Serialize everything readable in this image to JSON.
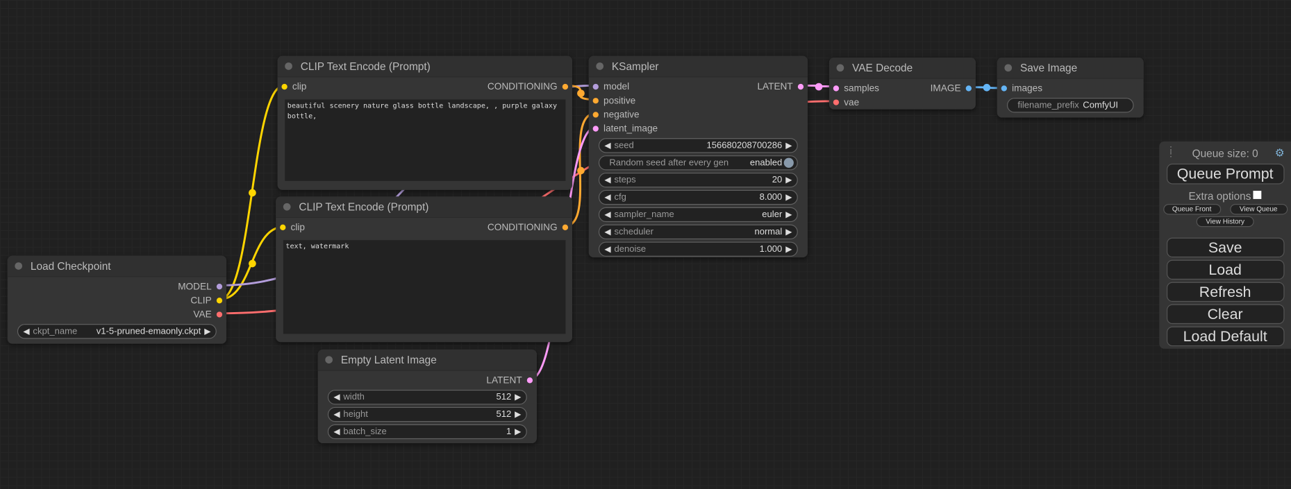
{
  "colors": {
    "CLIP": "#ffd500",
    "MODEL": "#b39ddb",
    "VAE": "#ff6e6e",
    "CONDITIONING": "#ffa931",
    "LATENT": "#ff9cf9",
    "IMAGE": "#64b5f6"
  },
  "nodes": [
    {
      "id": "clip1",
      "title": "CLIP Text Encode (Prompt)",
      "inputs": [
        {
          "label": "clip",
          "type": "CLIP"
        }
      ],
      "outputs": [
        {
          "label": "CONDITIONING",
          "type": "CONDITIONING"
        }
      ],
      "widgets": [],
      "text": "beautiful scenery nature glass bottle landscape, , purple galaxy bottle,"
    },
    {
      "id": "clip2",
      "title": "CLIP Text Encode (Prompt)",
      "inputs": [
        {
          "label": "clip",
          "type": "CLIP"
        }
      ],
      "outputs": [
        {
          "label": "CONDITIONING",
          "type": "CONDITIONING"
        }
      ],
      "widgets": [],
      "text": "text, watermark"
    },
    {
      "id": "ckpt",
      "title": "Load Checkpoint",
      "inputs": [],
      "outputs": [
        {
          "label": "MODEL",
          "type": "MODEL"
        },
        {
          "label": "CLIP",
          "type": "CLIP"
        },
        {
          "label": "VAE",
          "type": "VAE"
        }
      ],
      "widgets": [
        {
          "label": "ckpt_name",
          "value": "v1-5-pruned-emaonly.ckpt",
          "kind": "combo"
        }
      ]
    },
    {
      "id": "latent",
      "title": "Empty Latent Image",
      "inputs": [],
      "outputs": [
        {
          "label": "LATENT",
          "type": "LATENT"
        }
      ],
      "widgets": [
        {
          "label": "width",
          "value": "512",
          "kind": "number"
        },
        {
          "label": "height",
          "value": "512",
          "kind": "number"
        },
        {
          "label": "batch_size",
          "value": "1",
          "kind": "number"
        }
      ]
    },
    {
      "id": "ksampler",
      "title": "KSampler",
      "inputs": [
        {
          "label": "model",
          "type": "MODEL"
        },
        {
          "label": "positive",
          "type": "CONDITIONING"
        },
        {
          "label": "negative",
          "type": "CONDITIONING"
        },
        {
          "label": "latent_image",
          "type": "LATENT"
        }
      ],
      "outputs": [
        {
          "label": "LATENT",
          "type": "LATENT"
        }
      ],
      "widgets": [
        {
          "label": "seed",
          "value": "156680208700286",
          "kind": "number"
        },
        {
          "label": "Random seed after every gen",
          "value": "enabled",
          "kind": "toggle"
        },
        {
          "label": "steps",
          "value": "20",
          "kind": "number"
        },
        {
          "label": "cfg",
          "value": "8.000",
          "kind": "number"
        },
        {
          "label": "sampler_name",
          "value": "euler",
          "kind": "combo"
        },
        {
          "label": "scheduler",
          "value": "normal",
          "kind": "combo"
        },
        {
          "label": "denoise",
          "value": "1.000",
          "kind": "number"
        }
      ]
    },
    {
      "id": "vaedecode",
      "title": "VAE Decode",
      "inputs": [
        {
          "label": "samples",
          "type": "LATENT"
        },
        {
          "label": "vae",
          "type": "VAE"
        }
      ],
      "outputs": [
        {
          "label": "IMAGE",
          "type": "IMAGE"
        }
      ],
      "widgets": []
    },
    {
      "id": "saveimage",
      "title": "Save Image",
      "inputs": [
        {
          "label": "images",
          "type": "IMAGE"
        }
      ],
      "outputs": [],
      "widgets": [
        {
          "label": "filename_prefix",
          "value": "ComfyUI",
          "kind": "text"
        }
      ]
    }
  ],
  "panel": {
    "queue_size": "Queue size: 0",
    "queue_prompt": "Queue Prompt",
    "extra_options": "Extra options",
    "extra_options_checked": false,
    "queue_front": "Queue Front",
    "view_queue": "View Queue",
    "view_history": "View History",
    "save": "Save",
    "load": "Load",
    "refresh": "Refresh",
    "clear": "Clear",
    "load_default": "Load Default"
  }
}
